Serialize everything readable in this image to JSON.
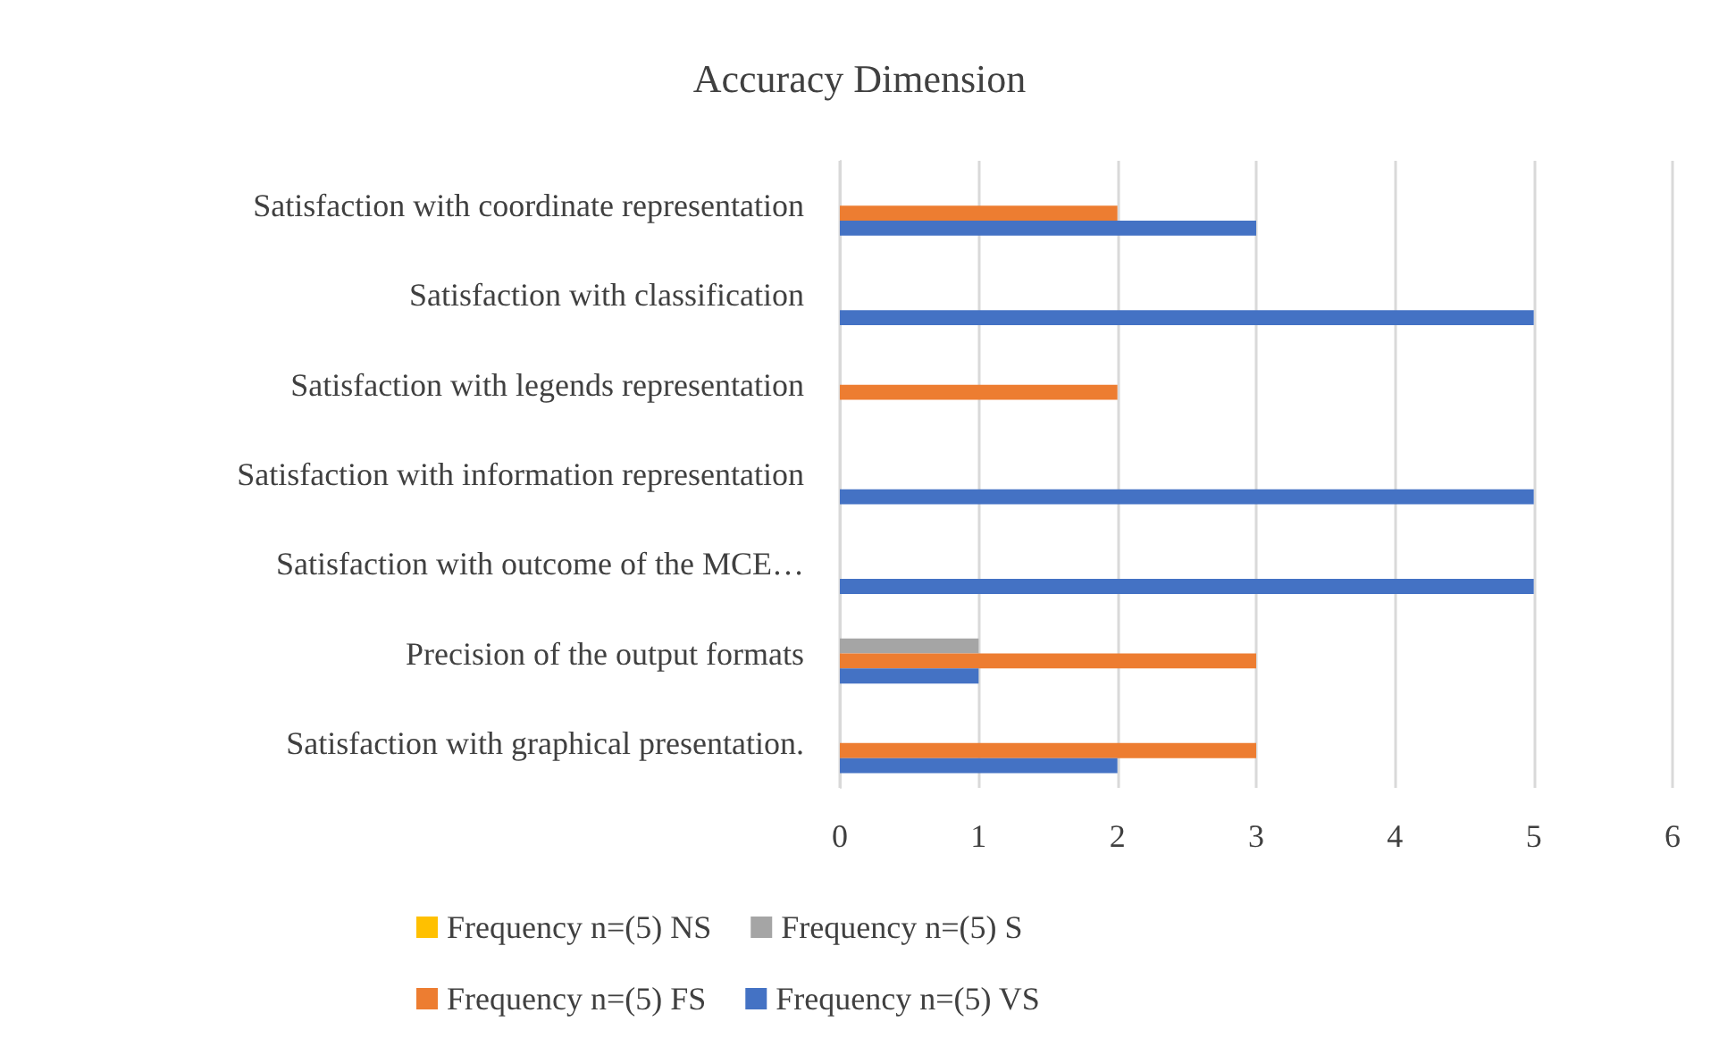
{
  "chart_data": {
    "type": "bar",
    "orientation": "horizontal",
    "title": "Accuracy Dimension",
    "categories": [
      "Satisfaction with coordinate representation",
      "Satisfaction with classification",
      "Satisfaction with legends representation",
      "Satisfaction with information representation",
      "Satisfaction with outcome of the MCE…",
      "Precision of the output formats",
      "Satisfaction with graphical presentation."
    ],
    "series": [
      {
        "name": "Frequency n=(5) NS",
        "color": "#ffc000",
        "values": [
          null,
          null,
          null,
          null,
          null,
          null,
          null
        ]
      },
      {
        "name": "Frequency n=(5) S",
        "color": "#a5a5a5",
        "values": [
          null,
          null,
          null,
          null,
          null,
          1,
          null
        ]
      },
      {
        "name": "Frequency n=(5) FS",
        "color": "#ed7d31",
        "values": [
          2,
          null,
          2,
          null,
          null,
          3,
          3
        ]
      },
      {
        "name": "Frequency n=(5) VS",
        "color": "#4472c4",
        "values": [
          3,
          5,
          null,
          5,
          5,
          1,
          2
        ]
      }
    ],
    "xlim": [
      0,
      6
    ],
    "xticks": [
      0,
      1,
      2,
      3,
      4,
      5,
      6
    ],
    "grid": "x",
    "legend": "bottom"
  }
}
